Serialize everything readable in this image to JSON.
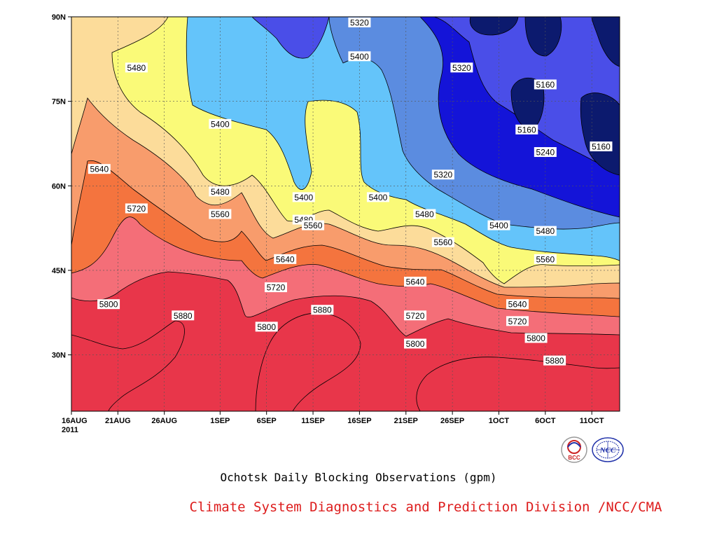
{
  "chart_data": {
    "type": "contour",
    "title": "Ochotsk Daily Blocking Observations (gpm)",
    "x_tick_labels": [
      "16AUG\n2011",
      "21AUG",
      "26AUG",
      "1SEP",
      "6SEP",
      "11SEP",
      "16SEP",
      "21SEP",
      "26SEP",
      "1OCT",
      "6OCT",
      "11OCT"
    ],
    "x_tick_dates": [
      "2011-08-16",
      "2011-08-21",
      "2011-08-26",
      "2011-09-01",
      "2011-09-06",
      "2011-09-11",
      "2011-09-16",
      "2011-09-21",
      "2011-09-26",
      "2011-10-01",
      "2011-10-06",
      "2011-10-11"
    ],
    "xlim": [
      "2011-08-16",
      "2011-10-14"
    ],
    "y_tick_labels": [
      "30N",
      "45N",
      "60N",
      "75N",
      "90N"
    ],
    "y_tick_values": [
      30,
      45,
      60,
      75,
      90
    ],
    "ylim": [
      20,
      90
    ],
    "grid": true,
    "contour_levels": [
      5160,
      5240,
      5320,
      5400,
      5480,
      5560,
      5640,
      5720,
      5800,
      5880
    ],
    "fill_colors": {
      "below_5160": "#0c1a6e",
      "5160_5240": "#1414d8",
      "5240_5320": "#4a4ee8",
      "5320_5400": "#5b8ce0",
      "5400_5480": "#64c4fa",
      "5480_5560": "#fafa78",
      "5560_5640": "#fcdc9a",
      "5640_5720": "#f89c6c",
      "5720_5800": "#f4743e",
      "5800_5880": "#f46e78",
      "above_5880": "#e8364a"
    },
    "contour_labels": [
      {
        "value": "5320",
        "date": "2011-09-16",
        "lat": 89
      },
      {
        "value": "5480",
        "date": "2011-08-23",
        "lat": 81
      },
      {
        "value": "5400",
        "date": "2011-09-16",
        "lat": 83
      },
      {
        "value": "5320",
        "date": "2011-09-27",
        "lat": 81
      },
      {
        "value": "5160",
        "date": "2011-10-06",
        "lat": 78
      },
      {
        "value": "5400",
        "date": "2011-09-01",
        "lat": 71
      },
      {
        "value": "5160",
        "date": "2011-10-04",
        "lat": 70
      },
      {
        "value": "5240",
        "date": "2011-10-06",
        "lat": 66
      },
      {
        "value": "5160",
        "date": "2011-10-12",
        "lat": 67
      },
      {
        "value": "5640",
        "date": "2011-08-19",
        "lat": 63
      },
      {
        "value": "5320",
        "date": "2011-09-25",
        "lat": 62
      },
      {
        "value": "5480",
        "date": "2011-09-01",
        "lat": 59
      },
      {
        "value": "5400",
        "date": "2011-09-10",
        "lat": 58
      },
      {
        "value": "5400",
        "date": "2011-09-18",
        "lat": 58
      },
      {
        "value": "5720",
        "date": "2011-08-23",
        "lat": 56
      },
      {
        "value": "5560",
        "date": "2011-09-01",
        "lat": 55
      },
      {
        "value": "5480",
        "date": "2011-09-10",
        "lat": 54
      },
      {
        "value": "5480",
        "date": "2011-09-23",
        "lat": 55
      },
      {
        "value": "5560",
        "date": "2011-09-11",
        "lat": 53
      },
      {
        "value": "5400",
        "date": "2011-10-01",
        "lat": 53
      },
      {
        "value": "5480",
        "date": "2011-10-06",
        "lat": 52
      },
      {
        "value": "5560",
        "date": "2011-09-25",
        "lat": 50
      },
      {
        "value": "5560",
        "date": "2011-10-06",
        "lat": 47
      },
      {
        "value": "5640",
        "date": "2011-09-08",
        "lat": 47
      },
      {
        "value": "5720",
        "date": "2011-09-07",
        "lat": 42
      },
      {
        "value": "5640",
        "date": "2011-09-22",
        "lat": 43
      },
      {
        "value": "5800",
        "date": "2011-08-20",
        "lat": 39
      },
      {
        "value": "5880",
        "date": "2011-09-12",
        "lat": 38
      },
      {
        "value": "5880",
        "date": "2011-08-28",
        "lat": 37
      },
      {
        "value": "5640",
        "date": "2011-10-03",
        "lat": 39
      },
      {
        "value": "5720",
        "date": "2011-09-22",
        "lat": 37
      },
      {
        "value": "5720",
        "date": "2011-10-03",
        "lat": 36
      },
      {
        "value": "5800",
        "date": "2011-09-06",
        "lat": 35
      },
      {
        "value": "5800",
        "date": "2011-10-05",
        "lat": 33
      },
      {
        "value": "5800",
        "date": "2011-09-22",
        "lat": 32
      },
      {
        "value": "5880",
        "date": "2011-10-07",
        "lat": 29
      }
    ]
  },
  "caption": {
    "title": "Ochotsk Daily Blocking Observations (gpm)",
    "credit": "Climate System Diagnostics and Prediction Division /NCC/CMA"
  },
  "logos": {
    "bcc": {
      "text": "BCC",
      "color": "#cc2222"
    },
    "ncc": {
      "text": "NCC",
      "color": "#2233aa"
    }
  }
}
